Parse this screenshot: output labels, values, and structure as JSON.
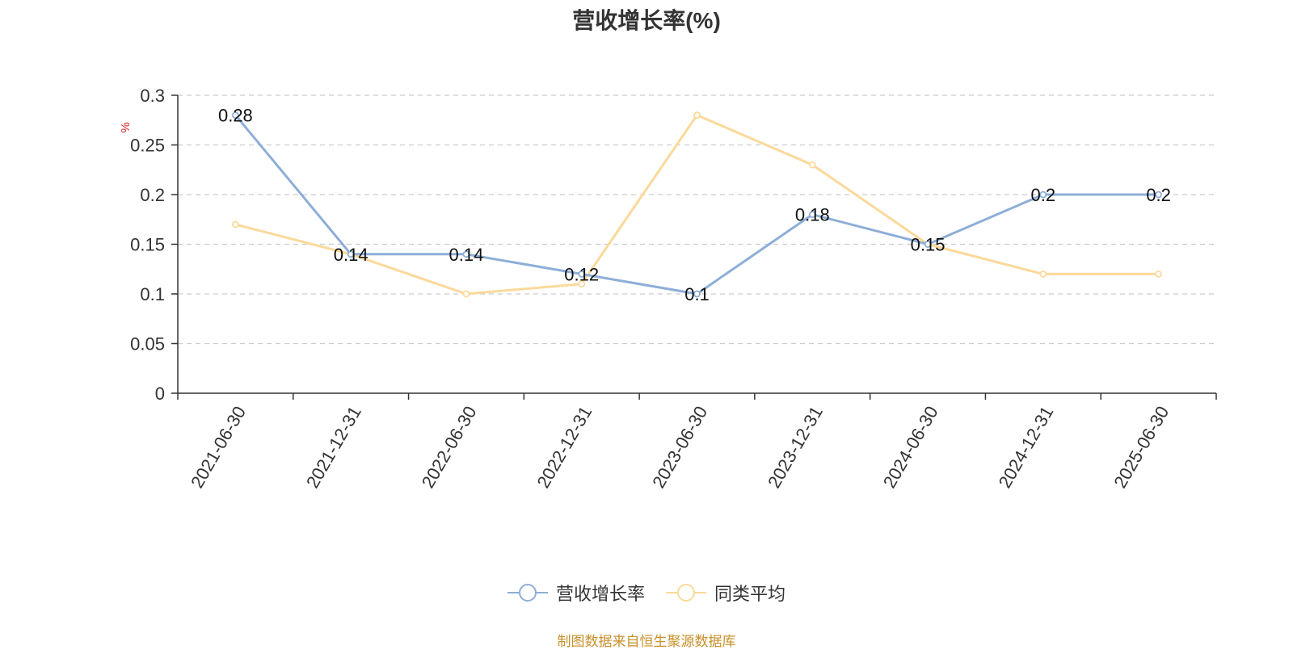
{
  "chart_data": {
    "type": "line",
    "title": "营收增长率(%)",
    "ylabel": "%",
    "categories": [
      "2021-06-30",
      "2021-12-31",
      "2022-06-30",
      "2022-12-31",
      "2023-06-30",
      "2023-12-31",
      "2024-06-30",
      "2024-12-31",
      "2025-06-30"
    ],
    "ylim": [
      0,
      0.3
    ],
    "yticks": [
      "0",
      "0.05",
      "0.1",
      "0.15",
      "0.2",
      "0.25",
      "0.3"
    ],
    "grid": true,
    "legend_position": "bottom",
    "series": [
      {
        "name": "营收增长率",
        "color": "#8eaed8",
        "values": [
          0.28,
          0.14,
          0.14,
          0.12,
          0.1,
          0.18,
          0.15,
          0.2,
          0.2
        ],
        "labels": [
          "0.28",
          "0.14",
          "0.14",
          "0.12",
          "0.1",
          "0.18",
          "0.15",
          "0.2",
          "0.2"
        ]
      },
      {
        "name": "同类平均",
        "color": "#fbd99a",
        "values": [
          0.17,
          0.14,
          0.1,
          0.11,
          0.28,
          0.23,
          0.15,
          0.12,
          0.12
        ]
      }
    ]
  },
  "source_text": "制图数据来自恒生聚源数据库",
  "colors": {
    "axis": "#333333",
    "grid": "#cccccc",
    "source": "#c8902a",
    "ylabel": "#e02020",
    "text": "#333333"
  }
}
